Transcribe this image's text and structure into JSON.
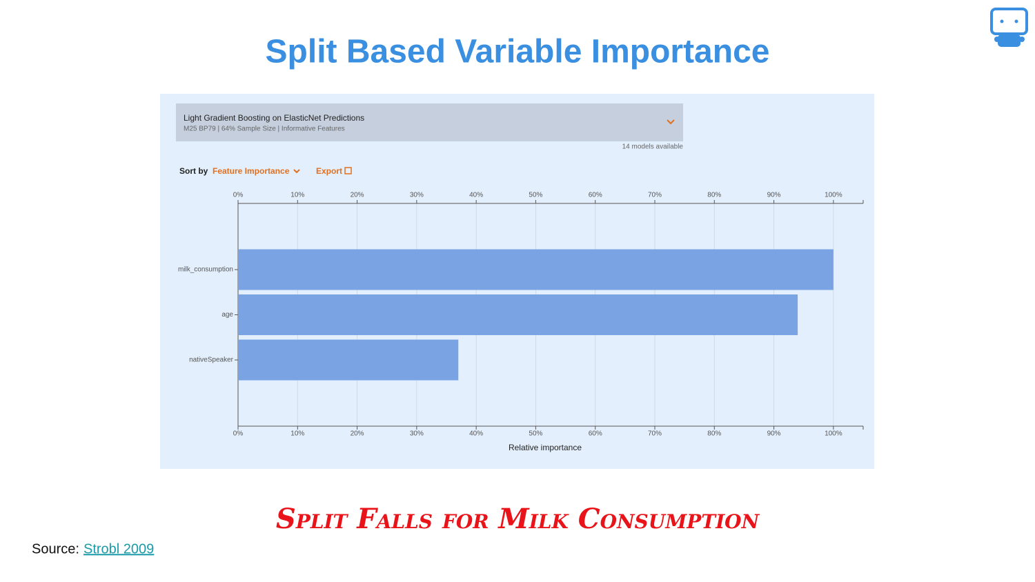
{
  "slide": {
    "title": "Split Based Variable Importance",
    "caption": "Split Falls for Milk Consumption",
    "source_label": "Source:",
    "source_link": "Strobl 2009"
  },
  "panel": {
    "model_title": "Light Gradient Boosting on ElasticNet Predictions",
    "model_subtitle": "M25 BP79 | 64% Sample Size | Informative Features",
    "models_available": "14 models available",
    "sort_label": "Sort by",
    "sort_value": "Feature Importance",
    "export": "Export"
  },
  "chart_data": {
    "type": "hbar",
    "xlabel": "Relative importance",
    "categories": [
      "milk_consumption",
      "age",
      "nativeSpeaker"
    ],
    "values": [
      100,
      94,
      37
    ],
    "color": "#7aa3e3",
    "xlim": [
      0,
      105
    ],
    "xticks": [
      {
        "value": 0,
        "label": "0%"
      },
      {
        "value": 10,
        "label": "10%"
      },
      {
        "value": 20,
        "label": "20%"
      },
      {
        "value": 30,
        "label": "30%"
      },
      {
        "value": 40,
        "label": "40%"
      },
      {
        "value": 50,
        "label": "50%"
      },
      {
        "value": 60,
        "label": "60%"
      },
      {
        "value": 70,
        "label": "70%"
      },
      {
        "value": 80,
        "label": "80%"
      },
      {
        "value": 90,
        "label": "90%"
      },
      {
        "value": 100,
        "label": "100%"
      }
    ],
    "grid": true
  }
}
